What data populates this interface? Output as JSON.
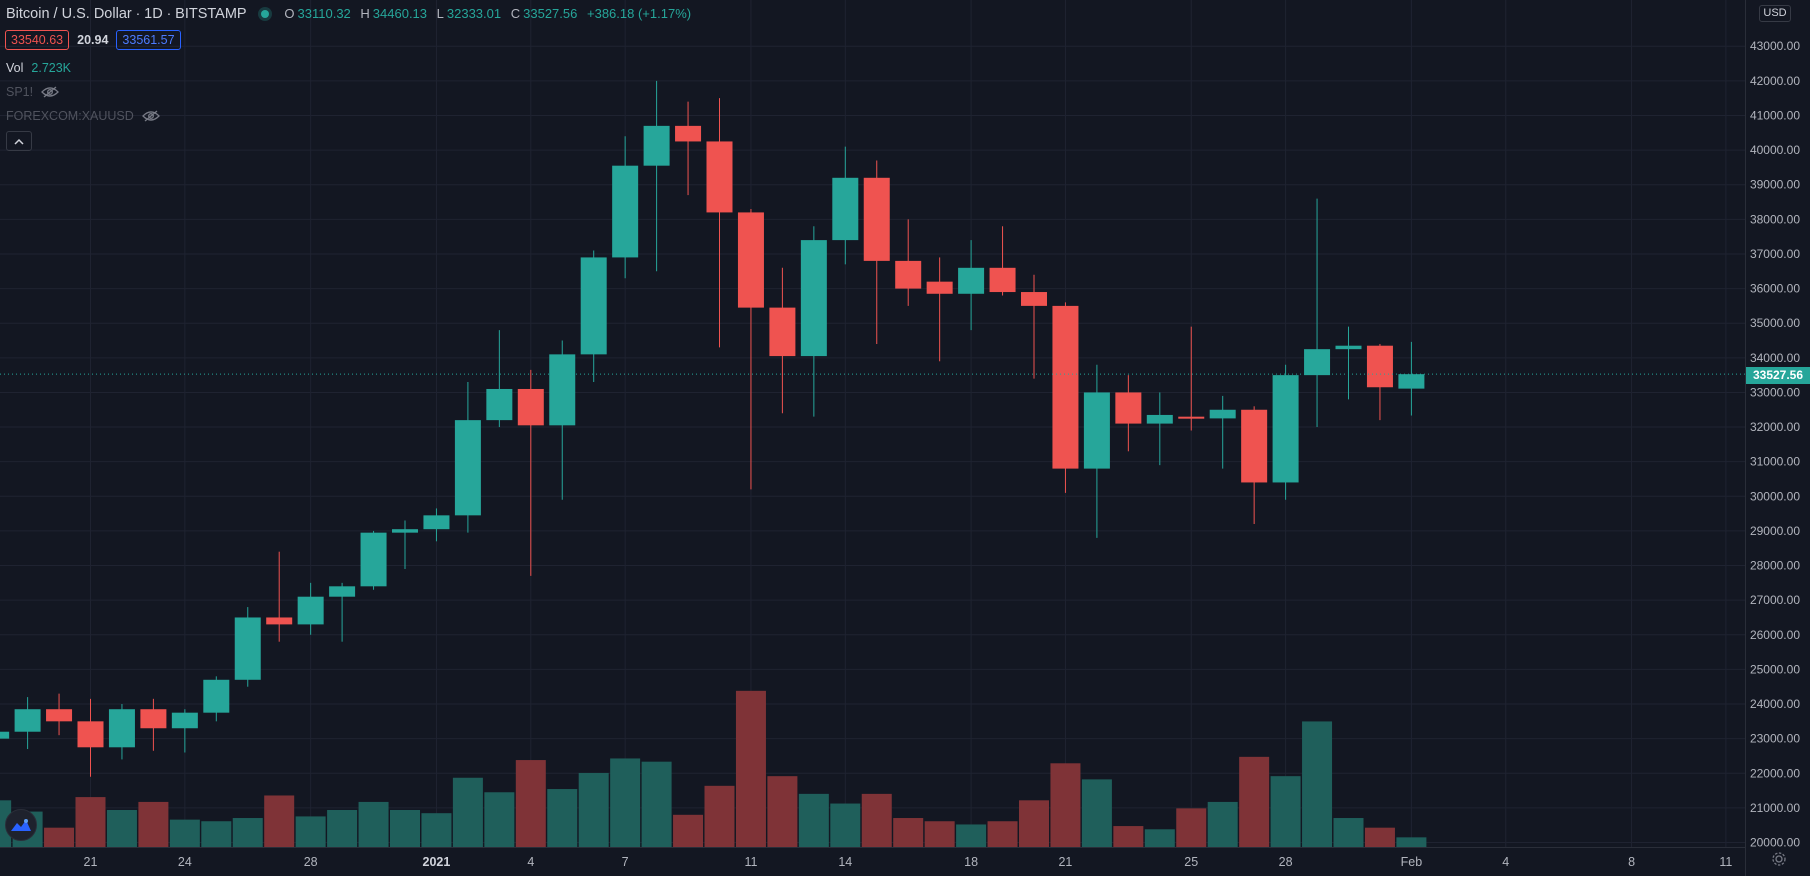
{
  "header": {
    "symbol": "Bitcoin / U.S. Dollar",
    "interval": "1D",
    "exchange": "BITSTAMP",
    "ohlc": {
      "open_label": "O",
      "open": "33110.32",
      "high_label": "H",
      "high": "34460.13",
      "low_label": "L",
      "low": "32333.01",
      "close_label": "C",
      "close": "33527.56",
      "change": "+386.18 (+1.17%)"
    }
  },
  "spread": {
    "bid": "33540.63",
    "spread": "20.94",
    "ask": "33561.57"
  },
  "indicators": [
    {
      "label": "Vol",
      "value": "2.723K"
    },
    {
      "label": "SP1!",
      "value": ""
    },
    {
      "label": "FOREXCOM:XAUUSD",
      "value": ""
    }
  ],
  "currency": "USD",
  "last_price": "33527.56",
  "colors": {
    "up": "#26a69a",
    "down": "#ef5350",
    "up_vol": "#1f5f5b",
    "down_vol": "#7f3337",
    "bg": "#131722"
  },
  "icons": [
    "eye-off-icon",
    "chevron-up-icon",
    "tradingview-logo-icon",
    "gear-icon"
  ],
  "chart_data": {
    "type": "candlestick",
    "y_ticks": [
      "20000.00",
      "21000.00",
      "22000.00",
      "23000.00",
      "24000.00",
      "25000.00",
      "26000.00",
      "27000.00",
      "28000.00",
      "29000.00",
      "30000.00",
      "31000.00",
      "32000.00",
      "33000.00",
      "34000.00",
      "35000.00",
      "36000.00",
      "37000.00",
      "38000.00",
      "39000.00",
      "40000.00",
      "41000.00",
      "42000.00",
      "43000.00"
    ],
    "ylim": [
      20000,
      44000
    ],
    "x_ticks": [
      {
        "label": "21",
        "day": 0,
        "bold": false
      },
      {
        "label": "24",
        "day": 3,
        "bold": false
      },
      {
        "label": "28",
        "day": 7,
        "bold": false
      },
      {
        "label": "2021",
        "day": 11,
        "bold": true
      },
      {
        "label": "4",
        "day": 14,
        "bold": false
      },
      {
        "label": "7",
        "day": 17,
        "bold": false
      },
      {
        "label": "11",
        "day": 21,
        "bold": false
      },
      {
        "label": "14",
        "day": 24,
        "bold": false
      },
      {
        "label": "18",
        "day": 28,
        "bold": false
      },
      {
        "label": "21",
        "day": 31,
        "bold": false
      },
      {
        "label": "25",
        "day": 35,
        "bold": false
      },
      {
        "label": "28",
        "day": 38,
        "bold": false
      },
      {
        "label": "Feb",
        "day": 42,
        "bold": false
      },
      {
        "label": "4",
        "day": 45,
        "bold": false
      },
      {
        "label": "8",
        "day": 49,
        "bold": false
      },
      {
        "label": "11",
        "day": 52,
        "bold": false
      }
    ],
    "candles": [
      {
        "day": -3,
        "o": 23000,
        "h": 23400,
        "l": 22600,
        "c": 23200,
        "v": 1.45
      },
      {
        "day": -2,
        "o": 23200,
        "h": 24200,
        "l": 22700,
        "c": 23850,
        "v": 1.1
      },
      {
        "day": -1,
        "o": 23850,
        "h": 24300,
        "l": 23100,
        "c": 23500,
        "v": 0.6
      },
      {
        "day": 0,
        "o": 23500,
        "h": 24150,
        "l": 21900,
        "c": 22750,
        "v": 1.55
      },
      {
        "day": 1,
        "o": 22750,
        "h": 24000,
        "l": 22400,
        "c": 23850,
        "v": 1.15
      },
      {
        "day": 2,
        "o": 23850,
        "h": 24150,
        "l": 22650,
        "c": 23300,
        "v": 1.4
      },
      {
        "day": 3,
        "o": 23300,
        "h": 23850,
        "l": 22600,
        "c": 23750,
        "v": 0.85
      },
      {
        "day": 4,
        "o": 23750,
        "h": 24800,
        "l": 23500,
        "c": 24700,
        "v": 0.8
      },
      {
        "day": 5,
        "o": 24700,
        "h": 26800,
        "l": 24500,
        "c": 26500,
        "v": 0.9
      },
      {
        "day": 6,
        "o": 26500,
        "h": 28400,
        "l": 25800,
        "c": 26300,
        "v": 1.6
      },
      {
        "day": 7,
        "o": 26300,
        "h": 27500,
        "l": 26000,
        "c": 27100,
        "v": 0.95
      },
      {
        "day": 8,
        "o": 27100,
        "h": 27500,
        "l": 25800,
        "c": 27400,
        "v": 1.15
      },
      {
        "day": 9,
        "o": 27400,
        "h": 29000,
        "l": 27300,
        "c": 28950,
        "v": 1.4
      },
      {
        "day": 10,
        "o": 28950,
        "h": 29300,
        "l": 27900,
        "c": 29050,
        "v": 1.15
      },
      {
        "day": 11,
        "o": 29050,
        "h": 29650,
        "l": 28700,
        "c": 29450,
        "v": 1.05
      },
      {
        "day": 12,
        "o": 29450,
        "h": 33300,
        "l": 28950,
        "c": 32200,
        "v": 2.15
      },
      {
        "day": 13,
        "o": 32200,
        "h": 34800,
        "l": 32000,
        "c": 33100,
        "v": 1.7
      },
      {
        "day": 14,
        "o": 33100,
        "h": 33650,
        "l": 27700,
        "c": 32050,
        "v": 2.7
      },
      {
        "day": 15,
        "o": 32050,
        "h": 34500,
        "l": 29900,
        "c": 34100,
        "v": 1.8
      },
      {
        "day": 16,
        "o": 34100,
        "h": 37100,
        "l": 33300,
        "c": 36900,
        "v": 2.3
      },
      {
        "day": 17,
        "o": 36900,
        "h": 40400,
        "l": 36300,
        "c": 39550,
        "v": 2.75
      },
      {
        "day": 18,
        "o": 39550,
        "h": 42000,
        "l": 36500,
        "c": 40700,
        "v": 2.65
      },
      {
        "day": 19,
        "o": 40700,
        "h": 41400,
        "l": 38700,
        "c": 40250,
        "v": 1.0
      },
      {
        "day": 20,
        "o": 40250,
        "h": 41500,
        "l": 34300,
        "c": 38200,
        "v": 1.9
      },
      {
        "day": 21,
        "o": 38200,
        "h": 38300,
        "l": 30200,
        "c": 35450,
        "v": 4.85
      },
      {
        "day": 22,
        "o": 35450,
        "h": 36600,
        "l": 32400,
        "c": 34050,
        "v": 2.2
      },
      {
        "day": 23,
        "o": 34050,
        "h": 37800,
        "l": 32300,
        "c": 37400,
        "v": 1.65
      },
      {
        "day": 24,
        "o": 37400,
        "h": 40100,
        "l": 36700,
        "c": 39200,
        "v": 1.35
      },
      {
        "day": 25,
        "o": 39200,
        "h": 39700,
        "l": 34400,
        "c": 36800,
        "v": 1.65
      },
      {
        "day": 26,
        "o": 36800,
        "h": 38000,
        "l": 35500,
        "c": 36000,
        "v": 0.9
      },
      {
        "day": 27,
        "o": 36200,
        "h": 36900,
        "l": 33900,
        "c": 35850,
        "v": 0.8
      },
      {
        "day": 28,
        "o": 35850,
        "h": 37400,
        "l": 34800,
        "c": 36600,
        "v": 0.7
      },
      {
        "day": 29,
        "o": 36600,
        "h": 37800,
        "l": 35800,
        "c": 35900,
        "v": 0.8
      },
      {
        "day": 30,
        "o": 35900,
        "h": 36400,
        "l": 33400,
        "c": 35500,
        "v": 1.45
      },
      {
        "day": 31,
        "o": 35500,
        "h": 35600,
        "l": 30100,
        "c": 30800,
        "v": 2.6
      },
      {
        "day": 32,
        "o": 30800,
        "h": 33800,
        "l": 28800,
        "c": 33000,
        "v": 2.1
      },
      {
        "day": 33,
        "o": 33000,
        "h": 33500,
        "l": 31300,
        "c": 32100,
        "v": 0.65
      },
      {
        "day": 34,
        "o": 32100,
        "h": 33000,
        "l": 30900,
        "c": 32350,
        "v": 0.55
      },
      {
        "day": 35,
        "o": 32300,
        "h": 34900,
        "l": 31900,
        "c": 32250,
        "v": 1.2
      },
      {
        "day": 36,
        "o": 32250,
        "h": 32900,
        "l": 30800,
        "c": 32500,
        "v": 1.4
      },
      {
        "day": 37,
        "o": 32500,
        "h": 32600,
        "l": 29200,
        "c": 30400,
        "v": 2.8
      },
      {
        "day": 38,
        "o": 30400,
        "h": 33800,
        "l": 29900,
        "c": 33500,
        "v": 2.2
      },
      {
        "day": 39,
        "o": 33500,
        "h": 38600,
        "l": 32000,
        "c": 34250,
        "v": 3.9
      },
      {
        "day": 40,
        "o": 34250,
        "h": 34900,
        "l": 32800,
        "c": 34350,
        "v": 0.9
      },
      {
        "day": 41,
        "o": 34350,
        "h": 34400,
        "l": 32200,
        "c": 33150,
        "v": 0.6
      },
      {
        "day": 42,
        "o": 33110.32,
        "h": 34460.13,
        "l": 32333.01,
        "c": 33527.56,
        "v": 0.3
      }
    ]
  }
}
